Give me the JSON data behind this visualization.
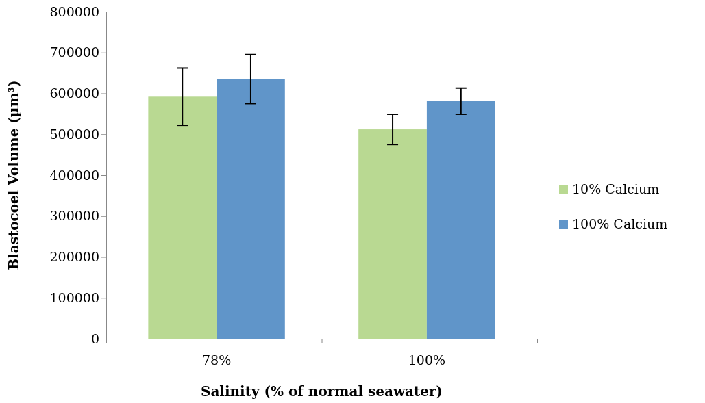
{
  "chart_data": {
    "type": "bar",
    "xlabel": "Salinity (% of normal seawater)",
    "ylabel": "Blastocoel Volume (µm³)",
    "categories": [
      "78%",
      "100%"
    ],
    "series": [
      {
        "name": "10% Calcium",
        "color": "#b9d992",
        "values": [
          592000,
          512000
        ],
        "errors": [
          70000,
          37000
        ]
      },
      {
        "name": "100% Calcium",
        "color": "#6095c9",
        "values": [
          635000,
          581000
        ],
        "errors": [
          60000,
          32000
        ]
      }
    ],
    "ylim": [
      0,
      800000
    ],
    "yticks": [
      0,
      100000,
      200000,
      300000,
      400000,
      500000,
      600000,
      700000,
      800000
    ],
    "grid": false,
    "legend": "right"
  }
}
